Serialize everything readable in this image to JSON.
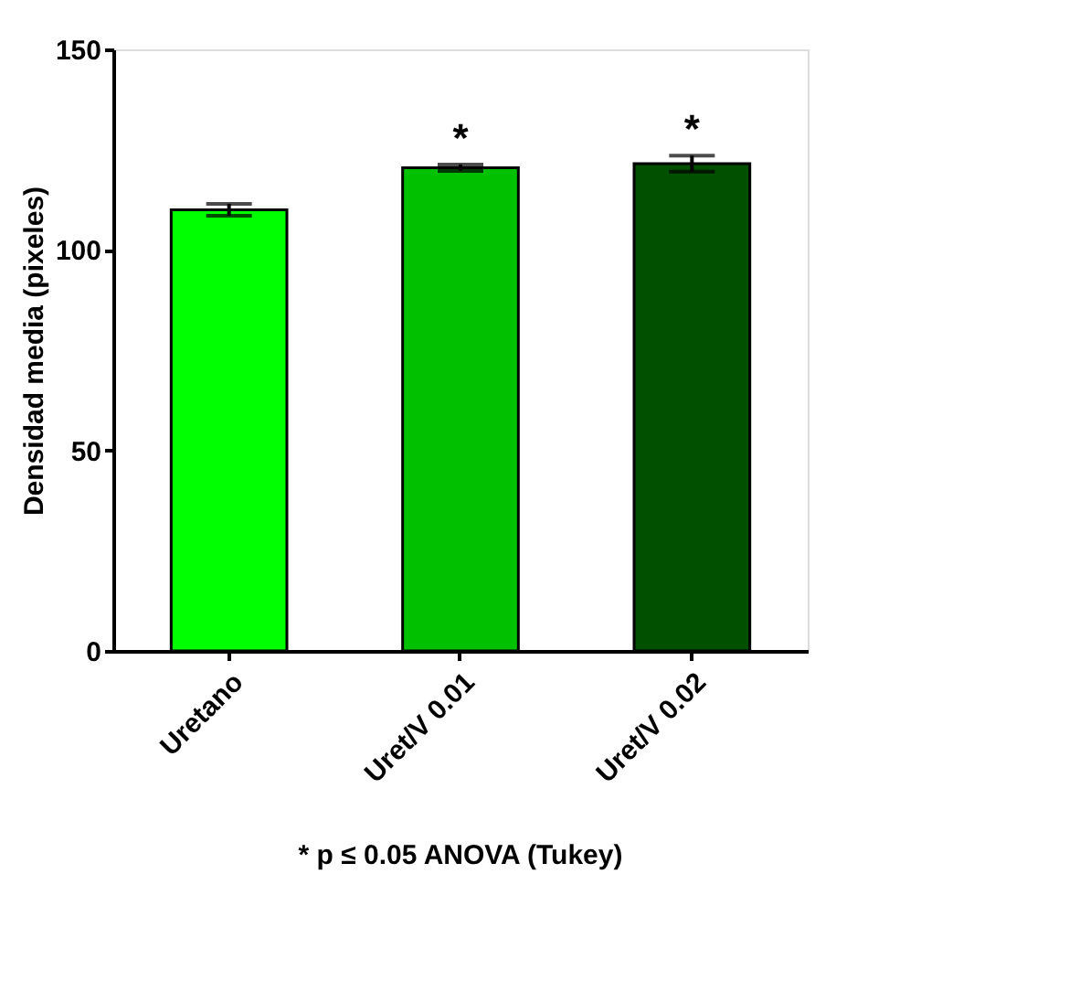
{
  "chart_data": {
    "type": "bar",
    "ylabel": "Densidad media (pixeles)",
    "categories": [
      "Uretano",
      "Uret/V 0.01",
      "Uret/V 0.02"
    ],
    "values": [
      110,
      120.5,
      121.5
    ],
    "colors": [
      "#00ff00",
      "#00c000",
      "#005000"
    ],
    "errors": [
      1.5,
      0.8,
      2
    ],
    "ylim": [
      0,
      150
    ],
    "yticks": [
      0,
      50,
      100,
      150
    ],
    "grid": false,
    "annotations": [
      {
        "text": "*",
        "x": "Uret/V 0.01",
        "y": 121.3
      },
      {
        "text": "*",
        "x": "Uret/V 0.02",
        "y": 123.5
      },
      "* p ≤ 0.05 ANOVA (Tukey)"
    ]
  }
}
